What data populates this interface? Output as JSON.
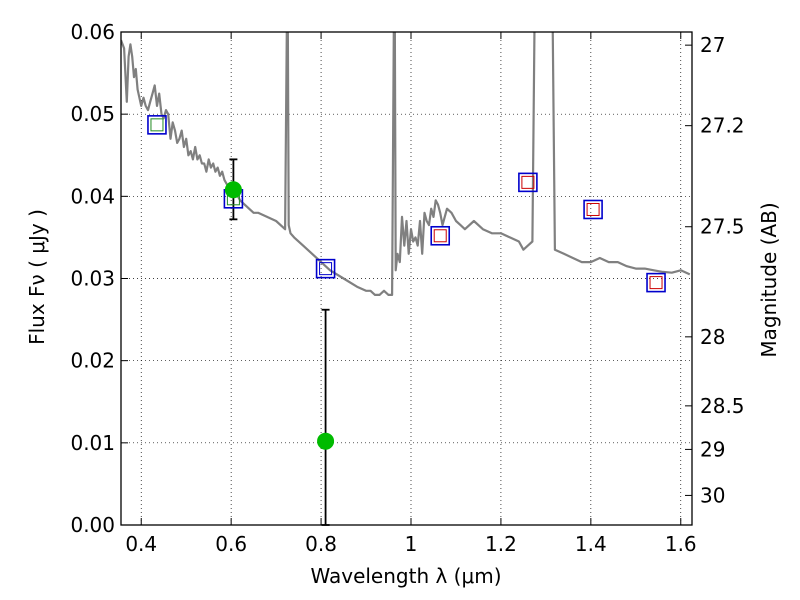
{
  "chart_data": {
    "type": "scatter",
    "xlabel": "Wavelength  λ (μm)",
    "ylabel": "Flux  Fν  ( μJy )",
    "y2label": "Magnitude (AB)",
    "xlim": [
      0.355,
      1.625
    ],
    "ylim": [
      0.0,
      0.06
    ],
    "grid": true,
    "x_ticks": [
      0.4,
      0.6,
      0.8,
      1.0,
      1.2,
      1.4,
      1.6
    ],
    "x_tick_labels": [
      "0.4",
      "0.6",
      "0.8",
      "1",
      "1.2",
      "1.4",
      "1.6"
    ],
    "y_ticks": [
      0.0,
      0.01,
      0.02,
      0.03,
      0.04,
      0.05,
      0.06
    ],
    "y_tick_labels": [
      "0.00",
      "0.01",
      "0.02",
      "0.03",
      "0.04",
      "0.05",
      "0.06"
    ],
    "right_ticks": [
      {
        "flux": 0.0584,
        "label": "27"
      },
      {
        "flux": 0.0486,
        "label": "27.2"
      },
      {
        "flux": 0.0363,
        "label": "27.5"
      },
      {
        "flux": 0.0229,
        "label": "28"
      },
      {
        "flux": 0.0145,
        "label": "28.5"
      },
      {
        "flux": 0.0092,
        "label": "29"
      },
      {
        "flux": 0.0036,
        "label": "30"
      }
    ],
    "series": [
      {
        "kind": "line",
        "color": "#808080",
        "x": [
          0.355,
          0.362,
          0.368,
          0.372,
          0.376,
          0.38,
          0.384,
          0.388,
          0.392,
          0.396,
          0.4,
          0.405,
          0.41,
          0.415,
          0.42,
          0.425,
          0.43,
          0.435,
          0.44,
          0.445,
          0.45,
          0.455,
          0.46,
          0.465,
          0.47,
          0.475,
          0.48,
          0.485,
          0.49,
          0.495,
          0.5,
          0.505,
          0.51,
          0.515,
          0.52,
          0.525,
          0.53,
          0.535,
          0.54,
          0.545,
          0.55,
          0.555,
          0.56,
          0.565,
          0.57,
          0.575,
          0.58,
          0.585,
          0.59,
          0.6,
          0.61,
          0.62,
          0.63,
          0.64,
          0.65,
          0.66,
          0.68,
          0.7,
          0.72,
          0.724,
          0.726,
          0.728,
          0.732,
          0.74,
          0.76,
          0.78,
          0.8,
          0.82,
          0.85,
          0.88,
          0.9,
          0.91,
          0.92,
          0.93,
          0.94,
          0.95,
          0.958,
          0.962,
          0.964,
          0.966,
          0.97,
          0.975,
          0.98,
          0.985,
          0.99,
          0.995,
          1.0,
          1.005,
          1.01,
          1.015,
          1.02,
          1.025,
          1.03,
          1.035,
          1.04,
          1.045,
          1.05,
          1.055,
          1.06,
          1.065,
          1.07,
          1.08,
          1.09,
          1.1,
          1.11,
          1.12,
          1.14,
          1.16,
          1.18,
          1.2,
          1.22,
          1.24,
          1.25,
          1.26,
          1.27,
          1.275,
          1.28,
          1.29,
          1.3,
          1.31,
          1.315,
          1.32,
          1.34,
          1.36,
          1.38,
          1.4,
          1.42,
          1.44,
          1.46,
          1.48,
          1.5,
          1.52,
          1.54,
          1.56,
          1.58,
          1.6,
          1.62
        ],
        "y": [
          0.059,
          0.058,
          0.0515,
          0.057,
          0.0585,
          0.057,
          0.0545,
          0.0555,
          0.053,
          0.052,
          0.051,
          0.052,
          0.051,
          0.0505,
          0.0515,
          0.0525,
          0.0535,
          0.051,
          0.0525,
          0.05,
          0.0495,
          0.0505,
          0.05,
          0.047,
          0.049,
          0.048,
          0.0465,
          0.047,
          0.048,
          0.046,
          0.047,
          0.045,
          0.0455,
          0.0445,
          0.046,
          0.0445,
          0.045,
          0.044,
          0.044,
          0.043,
          0.0445,
          0.0435,
          0.044,
          0.043,
          0.0435,
          0.0425,
          0.043,
          0.042,
          0.0415,
          0.041,
          0.0405,
          0.0395,
          0.039,
          0.0385,
          0.038,
          0.038,
          0.0375,
          0.037,
          0.036,
          0.0615,
          0.0615,
          0.0365,
          0.0355,
          0.035,
          0.034,
          0.033,
          0.032,
          0.031,
          0.03,
          0.029,
          0.0285,
          0.0285,
          0.028,
          0.028,
          0.0285,
          0.028,
          0.028,
          0.062,
          0.062,
          0.031,
          0.033,
          0.032,
          0.0375,
          0.034,
          0.037,
          0.033,
          0.036,
          0.0345,
          0.035,
          0.034,
          0.037,
          0.033,
          0.038,
          0.037,
          0.0365,
          0.0385,
          0.0375,
          0.0395,
          0.039,
          0.038,
          0.0365,
          0.0385,
          0.038,
          0.037,
          0.0365,
          0.036,
          0.037,
          0.036,
          0.0355,
          0.0355,
          0.035,
          0.0345,
          0.0335,
          0.034,
          0.0345,
          0.062,
          0.062,
          0.062,
          0.062,
          0.062,
          0.062,
          0.0335,
          0.033,
          0.0325,
          0.032,
          0.032,
          0.0325,
          0.032,
          0.032,
          0.0315,
          0.0312,
          0.0312,
          0.031,
          0.0308,
          0.0307,
          0.031,
          0.0305
        ]
      },
      {
        "kind": "blue-open-squares",
        "color": "#0000cc",
        "x": [
          0.435,
          0.605,
          0.81,
          1.065,
          1.26,
          1.405,
          1.545
        ],
        "y": [
          0.0487,
          0.0397,
          0.0312,
          0.0352,
          0.0417,
          0.0384,
          0.0295
        ]
      },
      {
        "kind": "model-open-squares",
        "colors": [
          "#228b22",
          "#228b22",
          "#0000cc",
          "#cc0000",
          "#cc0000",
          "#cc0000",
          "#cc0000"
        ],
        "x": [
          0.435,
          0.605,
          0.81,
          1.065,
          1.26,
          1.405,
          1.545
        ],
        "y": [
          0.0487,
          0.0397,
          0.0312,
          0.0352,
          0.0417,
          0.0384,
          0.0295
        ]
      },
      {
        "kind": "green-points",
        "color": "#00bb00",
        "x": [
          0.605,
          0.81
        ],
        "y": [
          0.0408,
          0.0102
        ],
        "yerr_low": [
          0.0372,
          0.0
        ],
        "yerr_high": [
          0.0445,
          0.0262
        ]
      }
    ]
  }
}
